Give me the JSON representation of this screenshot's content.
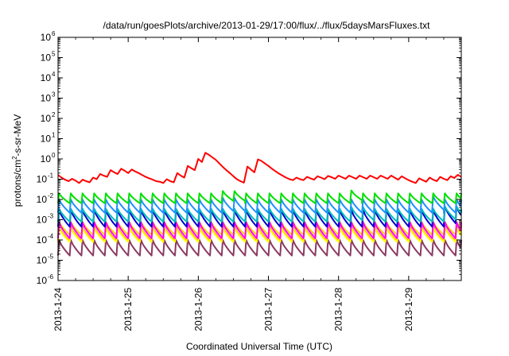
{
  "chart_data": {
    "type": "line",
    "title": "/data/run/goesPlots/archive/2013-01-29/17:00/flux/../flux/5daysMarsFluxes.txt",
    "xlabel": "Coordinated Universal Time (UTC)",
    "ylabel": {
      "pre": "protons/cm",
      "sup": "2",
      "post": "-s-sr-MeV"
    },
    "yscale": "log",
    "ylim": [
      1e-06,
      1000000.0
    ],
    "xlim": [
      0,
      5.75
    ],
    "x_unit": "days since 2013-1-24 00:00 UTC",
    "x_ticks": [
      {
        "x": 0,
        "label": "2013-1-24"
      },
      {
        "x": 1,
        "label": "2013-1-25"
      },
      {
        "x": 2,
        "label": "2013-1-26"
      },
      {
        "x": 3,
        "label": "2013-1-27"
      },
      {
        "x": 4,
        "label": "2013-1-28"
      },
      {
        "x": 5,
        "label": "2013-1-29"
      }
    ],
    "y_ticks": [
      {
        "exp": -6
      },
      {
        "exp": -5
      },
      {
        "exp": -4
      },
      {
        "exp": -3
      },
      {
        "exp": -2
      },
      {
        "exp": -1
      },
      {
        "exp": 0
      },
      {
        "exp": 1
      },
      {
        "exp": 2
      },
      {
        "exp": 3
      },
      {
        "exp": 4
      },
      {
        "exp": 5
      },
      {
        "exp": 6
      }
    ],
    "tick_base": "10",
    "grid": false,
    "series": [
      {
        "color": "#ff0000",
        "points": [
          [
            0.0,
            0.16
          ],
          [
            0.05,
            0.12
          ],
          [
            0.1,
            0.095
          ],
          [
            0.15,
            0.08
          ],
          [
            0.2,
            0.105
          ],
          [
            0.25,
            0.085
          ],
          [
            0.3,
            0.065
          ],
          [
            0.35,
            0.095
          ],
          [
            0.4,
            0.08
          ],
          [
            0.45,
            0.07
          ],
          [
            0.5,
            0.12
          ],
          [
            0.55,
            0.1
          ],
          [
            0.6,
            0.18
          ],
          [
            0.65,
            0.15
          ],
          [
            0.7,
            0.13
          ],
          [
            0.75,
            0.28
          ],
          [
            0.8,
            0.22
          ],
          [
            0.85,
            0.18
          ],
          [
            0.9,
            0.33
          ],
          [
            0.95,
            0.26
          ],
          [
            1.0,
            0.2
          ],
          [
            1.05,
            0.3
          ],
          [
            1.1,
            0.24
          ],
          [
            1.15,
            0.2
          ],
          [
            1.2,
            0.16
          ],
          [
            1.25,
            0.13
          ],
          [
            1.3,
            0.11
          ],
          [
            1.35,
            0.095
          ],
          [
            1.4,
            0.08
          ],
          [
            1.45,
            0.075
          ],
          [
            1.5,
            0.065
          ],
          [
            1.55,
            0.1
          ],
          [
            1.6,
            0.08
          ],
          [
            1.65,
            0.07
          ],
          [
            1.7,
            0.2
          ],
          [
            1.75,
            0.15
          ],
          [
            1.8,
            0.12
          ],
          [
            1.85,
            0.45
          ],
          [
            1.9,
            0.35
          ],
          [
            1.95,
            0.28
          ],
          [
            2.0,
            1.0
          ],
          [
            2.05,
            0.7
          ],
          [
            2.1,
            2.0
          ],
          [
            2.15,
            1.6
          ],
          [
            2.2,
            1.2
          ],
          [
            2.25,
            0.9
          ],
          [
            2.3,
            0.6
          ],
          [
            2.35,
            0.4
          ],
          [
            2.4,
            0.28
          ],
          [
            2.45,
            0.2
          ],
          [
            2.5,
            0.14
          ],
          [
            2.55,
            0.1
          ],
          [
            2.6,
            0.08
          ],
          [
            2.65,
            0.068
          ],
          [
            2.7,
            0.42
          ],
          [
            2.75,
            0.3
          ],
          [
            2.8,
            0.22
          ],
          [
            2.85,
            0.95
          ],
          [
            2.9,
            0.8
          ],
          [
            2.95,
            0.6
          ],
          [
            3.0,
            0.45
          ],
          [
            3.05,
            0.33
          ],
          [
            3.1,
            0.25
          ],
          [
            3.15,
            0.19
          ],
          [
            3.2,
            0.15
          ],
          [
            3.25,
            0.12
          ],
          [
            3.3,
            0.1
          ],
          [
            3.35,
            0.09
          ],
          [
            3.4,
            0.12
          ],
          [
            3.45,
            0.1
          ],
          [
            3.5,
            0.09
          ],
          [
            3.55,
            0.13
          ],
          [
            3.6,
            0.11
          ],
          [
            3.65,
            0.095
          ],
          [
            3.7,
            0.14
          ],
          [
            3.75,
            0.12
          ],
          [
            3.8,
            0.1
          ],
          [
            3.85,
            0.145
          ],
          [
            3.9,
            0.125
          ],
          [
            3.95,
            0.105
          ],
          [
            4.0,
            0.15
          ],
          [
            4.05,
            0.125
          ],
          [
            4.1,
            0.105
          ],
          [
            4.15,
            0.15
          ],
          [
            4.2,
            0.125
          ],
          [
            4.25,
            0.105
          ],
          [
            4.3,
            0.15
          ],
          [
            4.35,
            0.125
          ],
          [
            4.4,
            0.105
          ],
          [
            4.45,
            0.15
          ],
          [
            4.5,
            0.125
          ],
          [
            4.55,
            0.105
          ],
          [
            4.6,
            0.15
          ],
          [
            4.65,
            0.125
          ],
          [
            4.7,
            0.105
          ],
          [
            4.75,
            0.15
          ],
          [
            4.8,
            0.12
          ],
          [
            4.85,
            0.095
          ],
          [
            4.9,
            0.14
          ],
          [
            4.95,
            0.11
          ],
          [
            5.0,
            0.09
          ],
          [
            5.05,
            0.075
          ],
          [
            5.1,
            0.065
          ],
          [
            5.15,
            0.11
          ],
          [
            5.2,
            0.09
          ],
          [
            5.25,
            0.075
          ],
          [
            5.3,
            0.12
          ],
          [
            5.35,
            0.095
          ],
          [
            5.4,
            0.08
          ],
          [
            5.45,
            0.13
          ],
          [
            5.5,
            0.105
          ],
          [
            5.55,
            0.09
          ],
          [
            5.6,
            0.14
          ],
          [
            5.65,
            0.115
          ],
          [
            5.7,
            0.165
          ],
          [
            5.75,
            0.13
          ]
        ]
      },
      {
        "color": "#00e000",
        "sawtooth": {
          "start": 0.0,
          "period": 0.1667,
          "peak": 0.02,
          "trough": 0.0065,
          "bumps": [
            [
              2.3,
              2.6,
              1.3
            ],
            [
              4.15,
              4.3,
              1.4
            ],
            [
              5.2,
              5.3,
              1.2
            ]
          ]
        }
      },
      {
        "color": "#1e90ff",
        "sawtooth": {
          "start": 0.0,
          "period": 0.1667,
          "peak": 0.01,
          "trough": 0.0022,
          "bumps": [
            [
              2.3,
              2.6,
              1.2
            ],
            [
              5.2,
              5.4,
              1.4
            ]
          ]
        }
      },
      {
        "color": "#00bcbc",
        "sawtooth": {
          "start": 0.0,
          "period": 0.1667,
          "peak": 0.0035,
          "trough": 0.0008,
          "bumps": [
            [
              4.1,
              4.4,
              1.2
            ],
            [
              5.4,
              5.75,
              1.3
            ]
          ]
        }
      },
      {
        "color": "#0000cd",
        "sawtooth": {
          "start": 0.0,
          "period": 0.1667,
          "peak": 0.003,
          "trough": 0.00045,
          "bumps": [
            [
              5.5,
              5.75,
              1.5
            ]
          ]
        }
      },
      {
        "color": "#ff00ff",
        "sawtooth": {
          "start": 0.0,
          "period": 0.1667,
          "peak": 0.00075,
          "trough": 0.00012,
          "bumps": []
        }
      },
      {
        "color": "#ffd700",
        "sawtooth": {
          "start": 0.0,
          "period": 0.1667,
          "peak": 0.0008,
          "trough": 0.00018,
          "bumps": []
        }
      },
      {
        "color": "#ffff00",
        "sawtooth": {
          "start": 0.0,
          "period": 0.1667,
          "peak": 0.0004,
          "trough": 8e-05,
          "bumps": []
        }
      },
      {
        "color": "#ff8c00",
        "sawtooth": {
          "start": 0.0,
          "period": 0.1667,
          "peak": 0.00045,
          "trough": 9e-05,
          "bumps": []
        }
      },
      {
        "color": "#8b3a62",
        "sawtooth": {
          "start": 0.0,
          "period": 0.1667,
          "peak": 0.0001,
          "trough": 1.7e-05,
          "bumps": []
        }
      }
    ]
  }
}
